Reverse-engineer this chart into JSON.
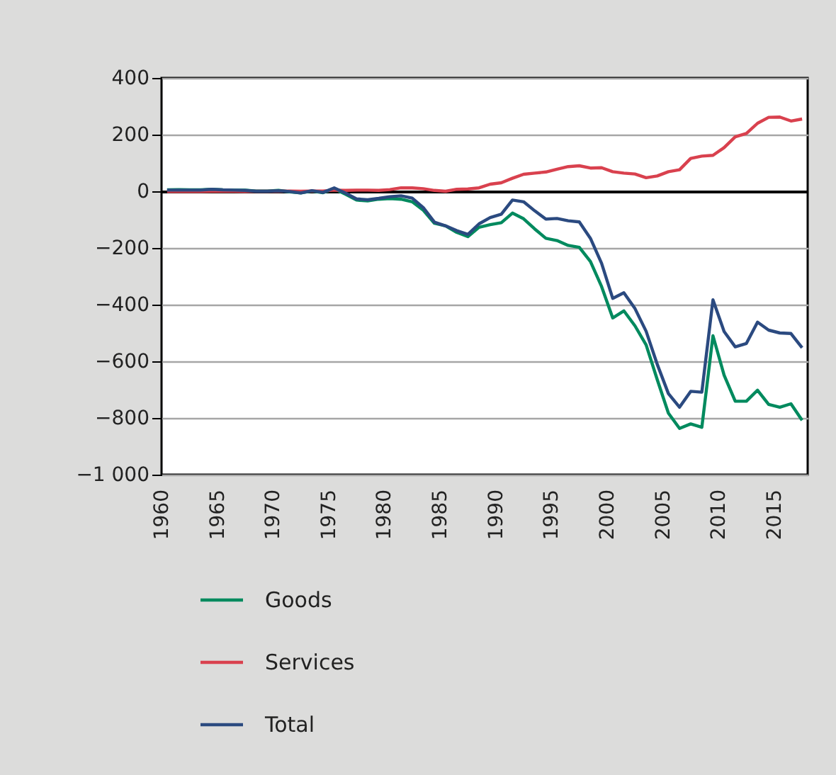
{
  "chart_data": {
    "type": "line",
    "x": [
      1960.5,
      1961.5,
      1962.5,
      1963.5,
      1964.5,
      1965.5,
      1966.5,
      1967.5,
      1968.5,
      1969.5,
      1970.5,
      1971.5,
      1972.5,
      1973.5,
      1974.5,
      1975.5,
      1976.5,
      1977.5,
      1978.5,
      1979.5,
      1980.5,
      1981.5,
      1982.5,
      1983.5,
      1984.5,
      1985.5,
      1986.5,
      1987.5,
      1988.5,
      1989.5,
      1990.5,
      1991.5,
      1992.5,
      1993.5,
      1994.5,
      1995.5,
      1996.5,
      1997.5,
      1998.5,
      1999.5,
      2000.5,
      2001.5,
      2002.5,
      2003.5,
      2004.5,
      2005.5,
      2006.5,
      2007.5,
      2008.5,
      2009.5,
      2010.5,
      2011.5,
      2012.5,
      2013.5,
      2014.5,
      2015.5,
      2016.5,
      2017.5
    ],
    "series": [
      {
        "name": "Goods",
        "color": "#008a5e",
        "values": [
          5,
          6,
          5,
          5,
          7,
          5,
          4,
          4,
          1,
          1,
          3,
          -2,
          -6,
          1,
          -5,
          9,
          -10,
          -31,
          -34,
          -28,
          -26,
          -28,
          -37,
          -67,
          -113,
          -122,
          -145,
          -160,
          -127,
          -118,
          -111,
          -77,
          -97,
          -133,
          -166,
          -174,
          -191,
          -198,
          -248,
          -336,
          -447,
          -422,
          -475,
          -542,
          -665,
          -783,
          -837,
          -821,
          -833,
          -510,
          -649,
          -741,
          -741,
          -702,
          -752,
          -762,
          -750,
          -808
        ]
      },
      {
        "name": "Services",
        "color": "#d9414e",
        "values": [
          -1,
          -1,
          -1,
          -1,
          0,
          0,
          0,
          -1,
          0,
          0,
          0,
          1,
          0,
          1,
          1,
          4,
          3,
          4,
          4,
          3,
          6,
          12,
          12,
          9,
          3,
          0,
          7,
          8,
          12,
          25,
          30,
          46,
          60,
          64,
          68,
          78,
          87,
          90,
          82,
          83,
          69,
          64,
          61,
          48,
          54,
          69,
          76,
          116,
          124,
          127,
          154,
          192,
          204,
          240,
          261,
          262,
          248,
          255
        ]
      },
      {
        "name": "Total",
        "color": "#2b4a80",
        "values": [
          4,
          4,
          4,
          4,
          7,
          5,
          4,
          3,
          0,
          0,
          2,
          -1,
          -6,
          2,
          -4,
          12,
          -6,
          -27,
          -30,
          -25,
          -19,
          -16,
          -24,
          -58,
          -109,
          -122,
          -139,
          -152,
          -115,
          -93,
          -81,
          -31,
          -37,
          -69,
          -98,
          -96,
          -104,
          -108,
          -166,
          -254,
          -378,
          -358,
          -414,
          -494,
          -611,
          -714,
          -762,
          -706,
          -709,
          -383,
          -495,
          -549,
          -537,
          -462,
          -490,
          -500,
          -502,
          -552
        ]
      }
    ],
    "xlim": [
      1960,
      2018
    ],
    "xticks": [
      1960,
      1965,
      1970,
      1975,
      1980,
      1985,
      1990,
      1995,
      2000,
      2005,
      2010,
      2015
    ],
    "ylim": [
      -1000,
      400
    ],
    "yticks": [
      400,
      200,
      0,
      {
        "value": -200,
        "label": "−200"
      },
      {
        "value": -400,
        "label": "−400"
      },
      {
        "value": -600,
        "label": "−600"
      },
      {
        "value": -800,
        "label": "−800"
      },
      {
        "value": -1000,
        "label": "−1 000"
      }
    ],
    "grid": "y",
    "legend": "bottom"
  }
}
